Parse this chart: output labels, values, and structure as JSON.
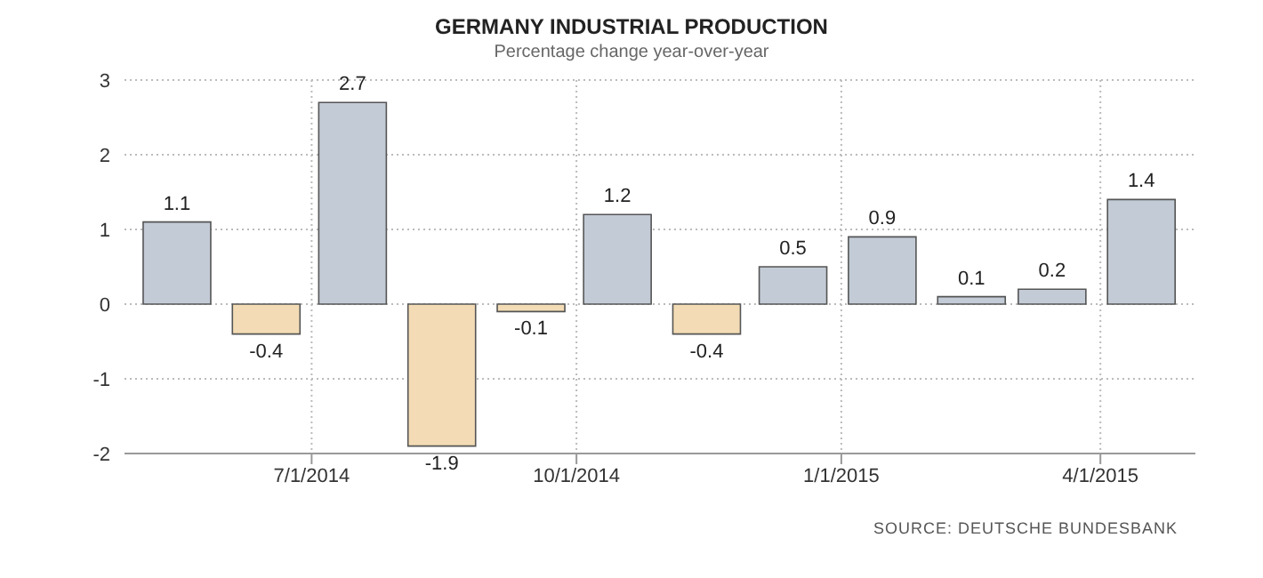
{
  "chart_data": {
    "type": "bar",
    "title": "GERMANY INDUSTRIAL PRODUCTION",
    "subtitle": "Percentage change year-over-year",
    "x": [
      "2014-05-15",
      "2014-06-15",
      "2014-07-15",
      "2014-08-15",
      "2014-09-15",
      "2014-10-15",
      "2014-11-15",
      "2014-12-15",
      "2015-01-15",
      "2015-02-15",
      "2015-03-15",
      "2015-04-15"
    ],
    "values": [
      1.1,
      -0.4,
      2.7,
      -1.9,
      -0.1,
      1.2,
      -0.4,
      0.5,
      0.9,
      0.1,
      0.2,
      1.4
    ],
    "colors": [
      "#c3cbd6",
      "#f3dcb5",
      "#c3cbd6",
      "#f3dcb5",
      "#f3dcb5",
      "#c3cbd6",
      "#f3dcb5",
      "#c3cbd6",
      "#c3cbd6",
      "#c3cbd6",
      "#c3cbd6",
      "#c3cbd6"
    ],
    "xlim": [
      "2014-04-27",
      "2015-05-04"
    ],
    "xticks": [
      {
        "value": "2014-07-01",
        "label": "7/1/2014"
      },
      {
        "value": "2014-10-01",
        "label": "10/1/2014"
      },
      {
        "value": "2015-01-01",
        "label": "1/1/2015"
      },
      {
        "value": "2015-04-01",
        "label": "4/1/2015"
      }
    ],
    "ylim": [
      -2,
      3
    ],
    "yticks": [
      -2,
      -1,
      0,
      1,
      2,
      3
    ],
    "grid": true,
    "data_labels": true,
    "annotations": [
      "SOURCE: DEUTSCHE BUNDESBANK"
    ]
  }
}
